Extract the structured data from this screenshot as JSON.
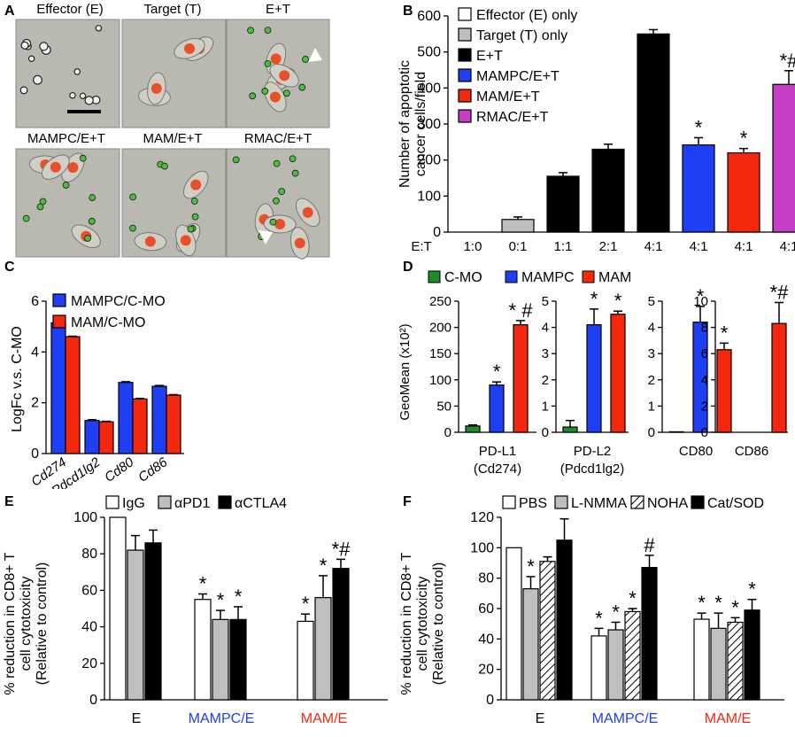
{
  "panels": {
    "A": {
      "letter": "A",
      "images": [
        {
          "label": "Effector (E)"
        },
        {
          "label": "Target (T)"
        },
        {
          "label": "E+T"
        },
        {
          "label": "MAMPC/E+T"
        },
        {
          "label": "MAM/E+T"
        },
        {
          "label": "RMAC/E+T"
        }
      ]
    },
    "B": {
      "letter": "B"
    },
    "C": {
      "letter": "C"
    },
    "D": {
      "letter": "D"
    },
    "E": {
      "letter": "E"
    },
    "F": {
      "letter": "F"
    }
  },
  "colors": {
    "black": "#000000",
    "white": "#ffffff",
    "gray": "#bfbfbf",
    "blue": "#1f3ff5",
    "red": "#f5270c",
    "purple": "#c63fc6",
    "green": "#1e8c2a",
    "micro_bg": "#b9b9b1",
    "cell_red": "#e8502a",
    "cell_green": "#4bbf3a"
  },
  "chart_data": [
    {
      "id": "B",
      "type": "bar",
      "ylabel": "Number of apoptotic cancer cells/field",
      "ylabel_lines": [
        "Number of apoptotic",
        "cancer cells/field"
      ],
      "ylim": [
        0,
        600
      ],
      "yticks": [
        "0",
        "100",
        "200",
        "300",
        "400",
        "500",
        "600"
      ],
      "xlabel_prefix": "E:T",
      "categories": [
        "1:0",
        "0:1",
        "1:1",
        "2:1",
        "4:1",
        "4:1",
        "4:1",
        "4:1"
      ],
      "values": [
        0,
        35,
        155,
        230,
        550,
        242,
        220,
        410
      ],
      "errors": [
        0,
        7,
        10,
        14,
        12,
        20,
        12,
        38
      ],
      "fills": [
        "white",
        "gray",
        "black",
        "black",
        "black",
        "blue",
        "red",
        "purple"
      ],
      "annotations": [
        "",
        "",
        "",
        "",
        "",
        "*",
        "*",
        "*#"
      ],
      "legend": [
        {
          "label": "Effector (E) only",
          "fill": "white"
        },
        {
          "label": "Target (T) only",
          "fill": "gray"
        },
        {
          "label": "E+T",
          "fill": "black"
        },
        {
          "label": "MAMPC/E+T",
          "fill": "blue"
        },
        {
          "label": "MAM/E+T",
          "fill": "red"
        },
        {
          "label": "RMAC/E+T",
          "fill": "purple"
        }
      ]
    },
    {
      "id": "C",
      "type": "bar",
      "ylabel": "LogFc v.s. C-MO",
      "ylim": [
        0,
        6
      ],
      "yticks": [
        "0",
        "2",
        "4",
        "6"
      ],
      "categories": [
        "Cd274",
        "Pdcd1lg2",
        "Cd80",
        "Cd86"
      ],
      "series": [
        {
          "name": "MAMPC/C-MO",
          "fill": "blue",
          "values": [
            5.15,
            1.3,
            2.8,
            2.65
          ],
          "errors": [
            0.03,
            0.03,
            0.03,
            0.03
          ]
        },
        {
          "name": "MAM/C-MO",
          "fill": "red",
          "values": [
            4.6,
            1.25,
            2.15,
            2.3
          ],
          "errors": [
            0.02,
            0.02,
            0.02,
            0.02
          ]
        }
      ]
    },
    {
      "id": "D",
      "type": "bar",
      "ylabel": "GeoMean (x10²)",
      "legend": [
        {
          "label": "C-MO",
          "fill": "green"
        },
        {
          "label": "MAMPC",
          "fill": "blue"
        },
        {
          "label": "MAM",
          "fill": "red"
        }
      ],
      "subplots": [
        {
          "label_lines": [
            "PD-L1",
            "(Cd274)"
          ],
          "ylim": [
            0,
            250
          ],
          "yticks": [
            "0",
            "50",
            "100",
            "150",
            "200",
            "250"
          ],
          "values": [
            12,
            90,
            205
          ],
          "errors": [
            2,
            6,
            8
          ],
          "annotations": [
            "",
            "*",
            "* #"
          ]
        },
        {
          "label_lines": [
            "PD-L2",
            "(Pdcd1lg2)"
          ],
          "ylim": [
            0,
            5
          ],
          "yticks": [
            "0",
            "1",
            "2",
            "3",
            "4",
            "5"
          ],
          "values": [
            0.2,
            4.1,
            4.5
          ],
          "errors": [
            0.25,
            0.6,
            0.12
          ],
          "annotations": [
            "",
            "*",
            "*"
          ]
        },
        {
          "label_lines": [
            "CD80"
          ],
          "ylim": [
            0,
            5
          ],
          "yticks": [
            "0",
            "1",
            "2",
            "3",
            "4",
            "5"
          ],
          "values": [
            0.02,
            4.2,
            3.15
          ],
          "errors": [
            0,
            0.6,
            0.25
          ],
          "annotations": [
            "",
            "*",
            "*"
          ]
        },
        {
          "label_lines": [
            "CD86"
          ],
          "ylim": [
            0,
            10
          ],
          "yticks": [
            "0",
            "2",
            "4",
            "6",
            "8",
            "10"
          ],
          "values": [
            0,
            0,
            8.3
          ],
          "errors": [
            0,
            0,
            1.6
          ],
          "annotations": [
            "",
            "",
            "*#"
          ]
        }
      ]
    },
    {
      "id": "E",
      "type": "bar",
      "ylabel_lines": [
        "% reduction in CD8+ T",
        "cell cytotoxicity",
        "(Relative to control)"
      ],
      "ylim": [
        0,
        100
      ],
      "yticks": [
        "0",
        "20",
        "40",
        "60",
        "80",
        "100"
      ],
      "categories": [
        "E",
        "MAMPC/E",
        "MAM/E"
      ],
      "category_colors": [
        "black",
        "blue",
        "red"
      ],
      "series": [
        {
          "name": "IgG",
          "fill": "white",
          "values": [
            100,
            55,
            43
          ],
          "errors": [
            0,
            3,
            4
          ],
          "annotations": [
            "",
            "*",
            "*"
          ]
        },
        {
          "name": "αPD1",
          "fill": "gray",
          "values": [
            82,
            44,
            56
          ],
          "errors": [
            8,
            5,
            12
          ],
          "annotations": [
            "",
            "*",
            "*"
          ]
        },
        {
          "name": "αCTLA4",
          "fill": "black",
          "values": [
            86,
            44,
            72
          ],
          "errors": [
            7,
            7,
            5
          ],
          "annotations": [
            "",
            "*",
            "*#"
          ]
        }
      ]
    },
    {
      "id": "F",
      "type": "bar",
      "ylabel_lines": [
        "% reduction in CD8+ T",
        "cell cytotoxicity",
        "(Relative to control)"
      ],
      "ylim": [
        0,
        120
      ],
      "yticks": [
        "0",
        "20",
        "40",
        "60",
        "80",
        "100",
        "120"
      ],
      "categories": [
        "E",
        "MAMPC/E",
        "MAM/E"
      ],
      "category_colors": [
        "black",
        "blue",
        "red"
      ],
      "series": [
        {
          "name": "PBS",
          "fill": "white",
          "values": [
            100,
            42,
            53
          ],
          "errors": [
            0,
            5,
            4
          ],
          "annotations": [
            "",
            "*",
            "*"
          ]
        },
        {
          "name": "L-NMMA",
          "fill": "gray",
          "values": [
            73,
            46,
            47
          ],
          "errors": [
            8,
            5,
            10
          ],
          "annotations": [
            "*",
            "*",
            "*"
          ]
        },
        {
          "name": "NOHA",
          "fill": "hatch",
          "values": [
            91,
            58,
            51
          ],
          "errors": [
            3,
            2,
            3
          ],
          "annotations": [
            "",
            "*",
            "*"
          ]
        },
        {
          "name": "Cat/SOD",
          "fill": "black",
          "values": [
            105,
            87,
            59
          ],
          "errors": [
            14,
            8,
            7
          ],
          "annotations": [
            "",
            "#",
            "*"
          ]
        }
      ]
    }
  ]
}
